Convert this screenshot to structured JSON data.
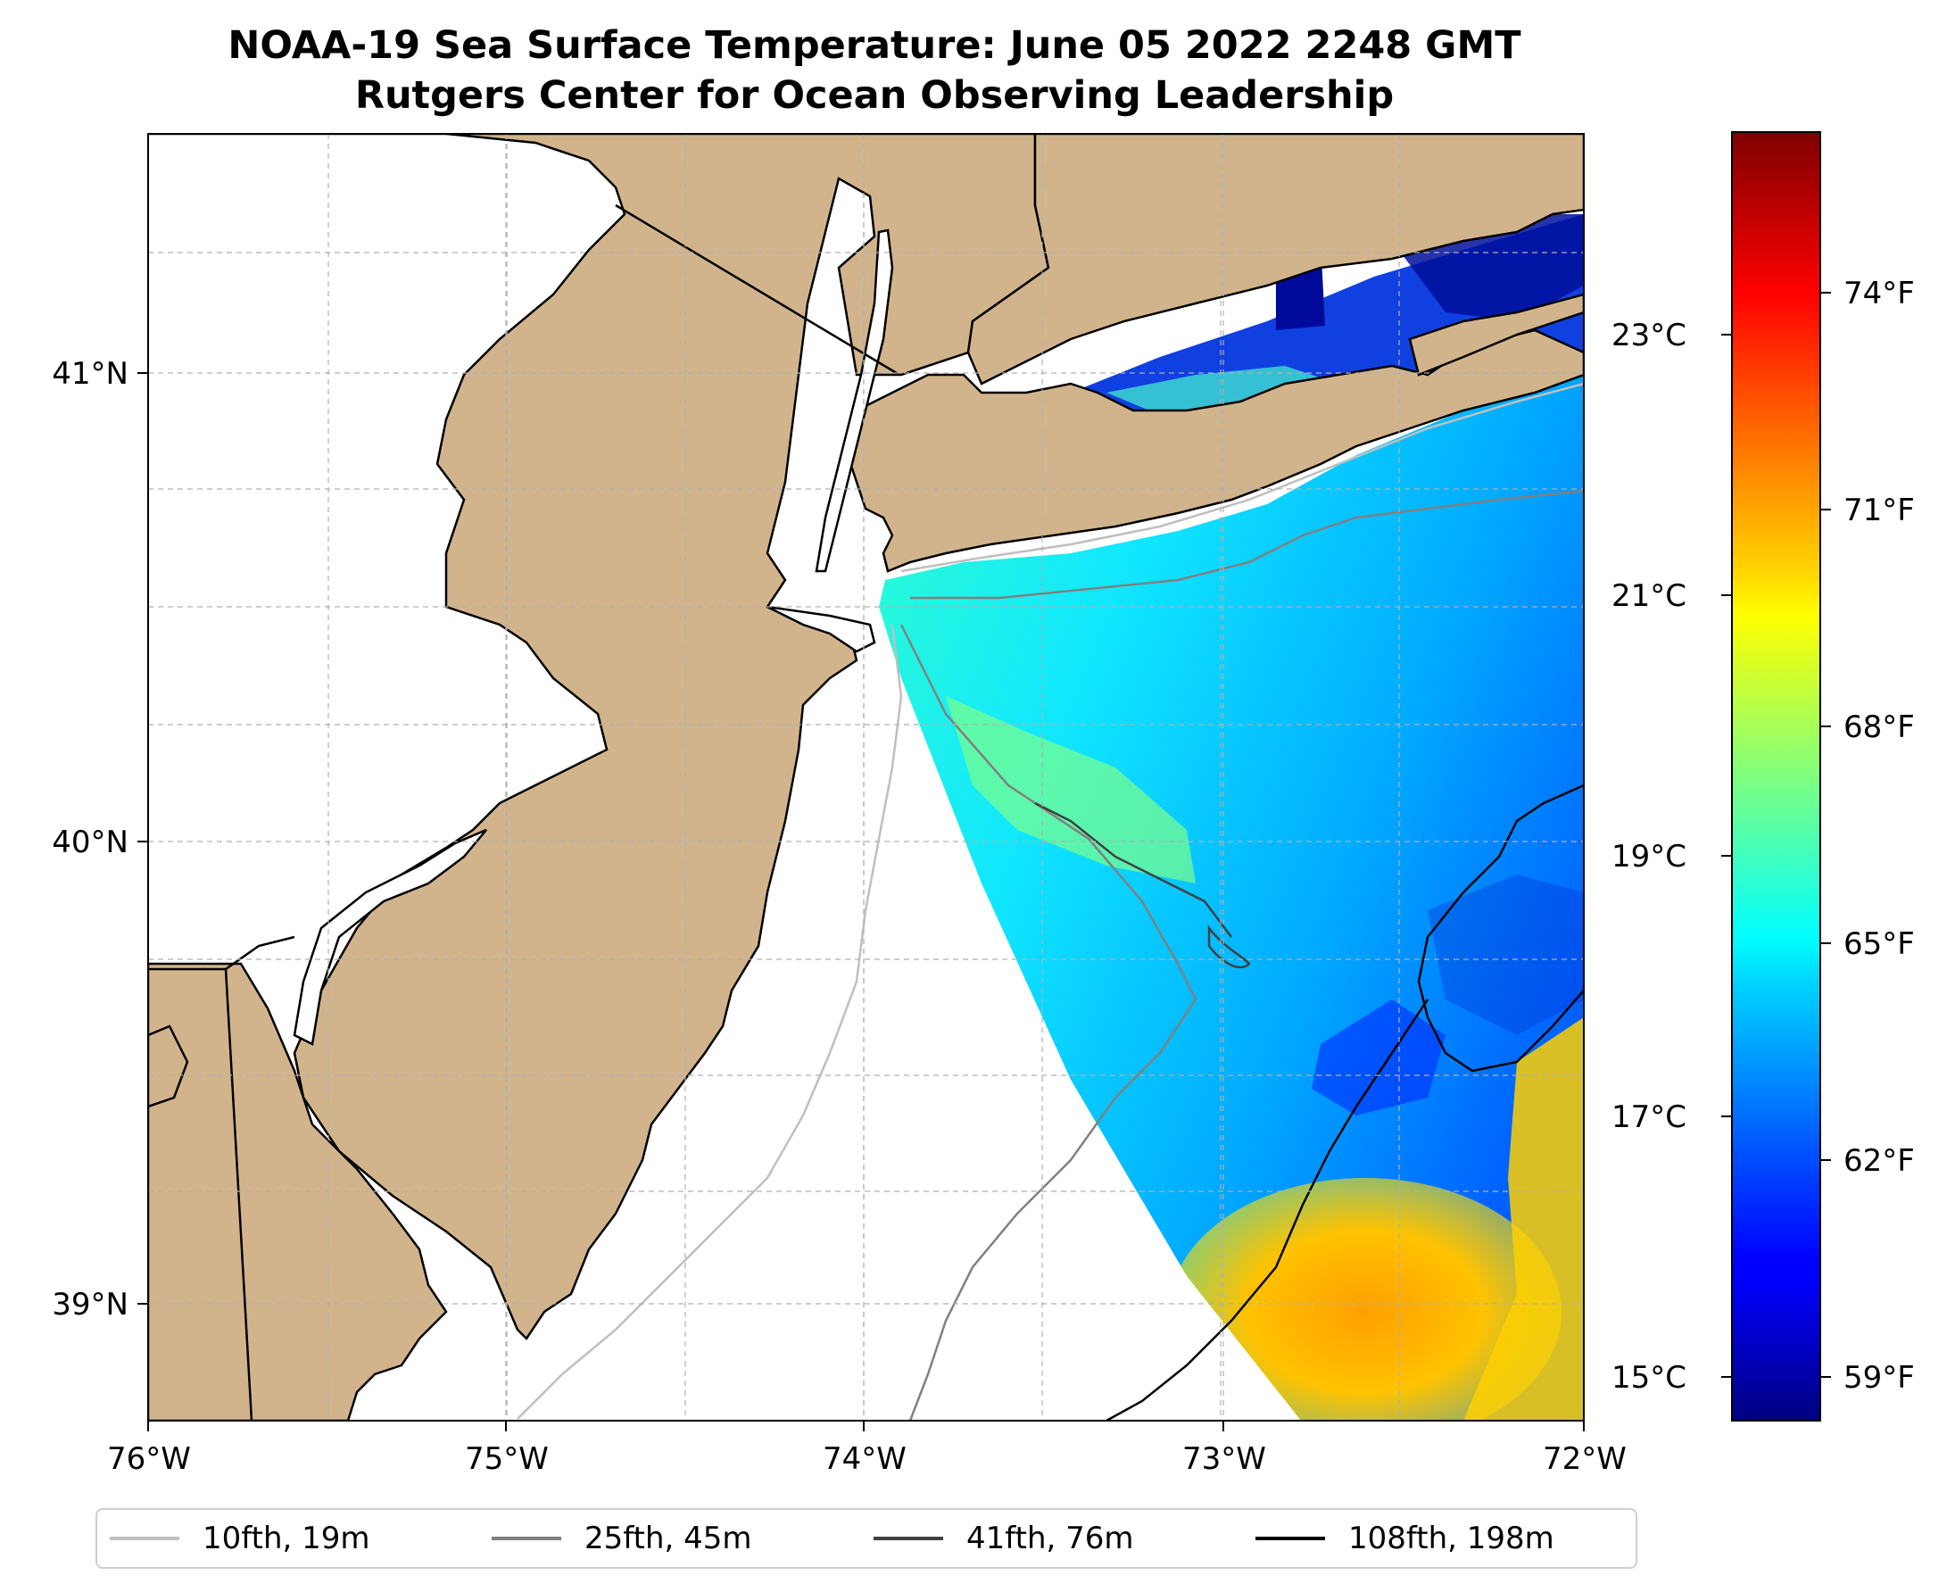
{
  "title": {
    "line1": "NOAA-19 Sea Surface Temperature: June 05 2022 2248 GMT",
    "line2": "Rutgers Center for Ocean Observing Leadership"
  },
  "colors": {
    "land": "#D2B48C",
    "ocean_nodata": "#FFFFFF",
    "coastline": "#000000",
    "grid": "#B0B0B0",
    "isobath_10fth": "#BFBFBF",
    "isobath_25fth": "#808080",
    "isobath_41fth": "#404040",
    "isobath_108fth": "#000000"
  },
  "map": {
    "lon_ticks": [
      "76°W",
      "75°W",
      "74°W",
      "73°W",
      "72°W"
    ],
    "lat_ticks": [
      "41°N",
      "40°N",
      "39°N"
    ],
    "lon_range": [
      -76,
      -72
    ],
    "lat_range": [
      38.75,
      41.52
    ]
  },
  "colorbar": {
    "colormap": "jet",
    "range_c": [
      14.6,
      24.6
    ],
    "celsius_ticks": [
      "23°C",
      "21°C",
      "19°C",
      "17°C",
      "15°C"
    ],
    "fahrenheit_ticks": [
      "74°F",
      "71°F",
      "68°F",
      "65°F",
      "62°F",
      "59°F"
    ]
  },
  "legend": [
    {
      "label": "10fth, 19m",
      "color": "#BFBFBF"
    },
    {
      "label": "25fth, 45m",
      "color": "#808080"
    },
    {
      "label": "41fth, 76m",
      "color": "#404040"
    },
    {
      "label": "108fth, 198m",
      "color": "#000000"
    }
  ]
}
